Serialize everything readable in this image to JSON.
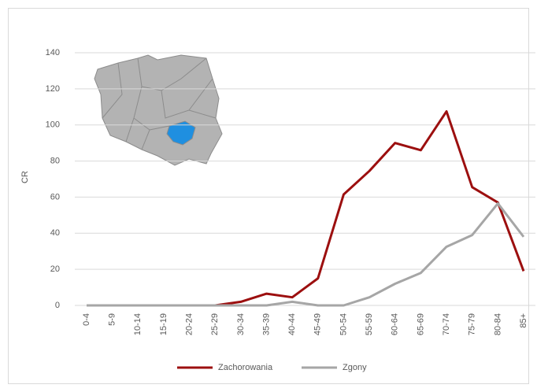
{
  "chart_data": {
    "type": "line",
    "y_label": "CR",
    "categories": [
      "0-4",
      "5-9",
      "10-14",
      "15-19",
      "20-24",
      "25-29",
      "30-34",
      "35-39",
      "40-44",
      "45-49",
      "50-54",
      "55-59",
      "60-64",
      "65-69",
      "70-74",
      "75-79",
      "80-84",
      "85+"
    ],
    "series": [
      {
        "name": "Zachorowania",
        "color": "#9c0f0f",
        "values": [
          0,
          0,
          0,
          0,
          0,
          0,
          2,
          6.5,
          4.5,
          15,
          61.5,
          74.5,
          90,
          86,
          107.5,
          65.5,
          57,
          19
        ]
      },
      {
        "name": "Zgony",
        "color": "#a6a6a6",
        "values": [
          0,
          0,
          0,
          0,
          0,
          0,
          0,
          0,
          2,
          0,
          0,
          4.5,
          12,
          18,
          32.5,
          39,
          56.5,
          38
        ]
      }
    ],
    "ylim": [
      0,
      140
    ],
    "yticks": [
      0,
      20,
      40,
      60,
      80,
      100,
      120,
      140
    ],
    "grid": true,
    "legend": "bottom"
  }
}
